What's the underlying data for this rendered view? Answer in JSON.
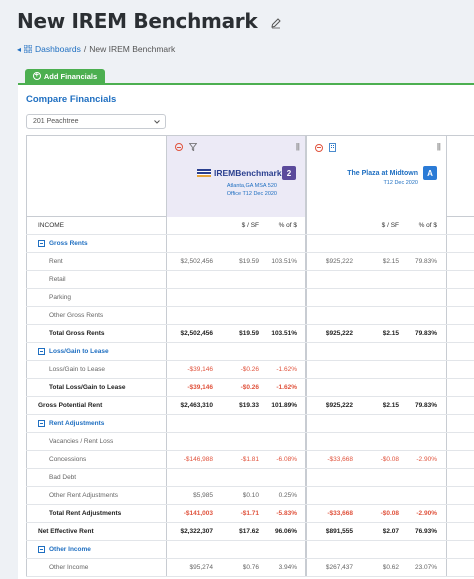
{
  "page": {
    "title": "New IREM Benchmark"
  },
  "breadcrumb": {
    "root": "Dashboards",
    "separator": "/",
    "current": "New IREM Benchmark"
  },
  "toolbar": {
    "add_financials": "Add Financials"
  },
  "card": {
    "title": "Compare Financials"
  },
  "property_select": {
    "value": "201 Peachtree"
  },
  "columns": {
    "benchmark": {
      "name": "IREMBenchmark",
      "count": "2",
      "line1": "Atlanta,GA MSA 520",
      "line2": "Office T12 Dec 2020"
    },
    "property": {
      "name": "The Plaza at Midtown",
      "badge": "A",
      "line1": "T12 Dec 2020"
    }
  },
  "column_headers": {
    "label": "INCOME",
    "per_sf": "$ / SF",
    "pct": "% of $"
  },
  "rows": [
    {
      "label": "Gross Rents",
      "type": "section"
    },
    {
      "label": "Rent",
      "type": "sub",
      "b": [
        "$2,502,456",
        "$19.59",
        "103.51%"
      ],
      "p": [
        "$925,222",
        "$2.15",
        "79.83%"
      ]
    },
    {
      "label": "Retail",
      "type": "sub",
      "b": [
        "",
        "",
        ""
      ],
      "p": [
        "",
        "",
        ""
      ]
    },
    {
      "label": "Parking",
      "type": "sub",
      "b": [
        "",
        "",
        ""
      ],
      "p": [
        "",
        "",
        ""
      ]
    },
    {
      "label": "Other Gross Rents",
      "type": "sub",
      "b": [
        "",
        "",
        ""
      ],
      "p": [
        "",
        "",
        ""
      ]
    },
    {
      "label": "Total Gross Rents",
      "type": "bold",
      "b": [
        "$2,502,456",
        "$19.59",
        "103.51%"
      ],
      "p": [
        "$925,222",
        "$2.15",
        "79.83%"
      ]
    },
    {
      "label": "Loss/Gain to Lease",
      "type": "section"
    },
    {
      "label": "Loss/Gain to Lease",
      "type": "sub",
      "b": [
        "-$39,146",
        "-$0.26",
        "-1.62%"
      ],
      "p": [
        "",
        "",
        ""
      ],
      "neg": true
    },
    {
      "label": "Total Loss/Gain to Lease",
      "type": "bold",
      "b": [
        "-$39,146",
        "-$0.26",
        "-1.62%"
      ],
      "p": [
        "",
        "",
        ""
      ],
      "neg": true
    },
    {
      "label": "Gross Potential Rent",
      "type": "top",
      "b": [
        "$2,463,310",
        "$19.33",
        "101.89%"
      ],
      "p": [
        "$925,222",
        "$2.15",
        "79.83%"
      ]
    },
    {
      "label": "Rent Adjustments",
      "type": "section"
    },
    {
      "label": "Vacancies / Rent Loss",
      "type": "sub",
      "b": [
        "",
        "",
        ""
      ],
      "p": [
        "",
        "",
        ""
      ]
    },
    {
      "label": "Concessions",
      "type": "sub",
      "b": [
        "-$146,988",
        "-$1.81",
        "-6.08%"
      ],
      "p": [
        "-$33,668",
        "-$0.08",
        "-2.90%"
      ],
      "neg": true
    },
    {
      "label": "Bad Debt",
      "type": "sub",
      "b": [
        "",
        "",
        ""
      ],
      "p": [
        "",
        "",
        ""
      ]
    },
    {
      "label": "Other Rent Adjustments",
      "type": "sub",
      "b": [
        "$5,985",
        "$0.10",
        "0.25%"
      ],
      "p": [
        "",
        "",
        ""
      ]
    },
    {
      "label": "Total Rent Adjustments",
      "type": "bold",
      "b": [
        "-$141,003",
        "-$1.71",
        "-5.83%"
      ],
      "p": [
        "-$33,668",
        "-$0.08",
        "-2.90%"
      ],
      "neg": true
    },
    {
      "label": "Net Effective Rent",
      "type": "top",
      "b": [
        "$2,322,307",
        "$17.62",
        "96.06%"
      ],
      "p": [
        "$891,555",
        "$2.07",
        "76.93%"
      ]
    },
    {
      "label": "Other Income",
      "type": "section"
    },
    {
      "label": "Other Income",
      "type": "sub",
      "b": [
        "$95,274",
        "$0.76",
        "3.94%"
      ],
      "p": [
        "$267,437",
        "$0.62",
        "23.07%"
      ]
    }
  ],
  "colors": {
    "accent": "#1f6fc1",
    "success": "#4caf50",
    "negative": "#e0533d",
    "benchmark_bg": "#eceaf6"
  }
}
